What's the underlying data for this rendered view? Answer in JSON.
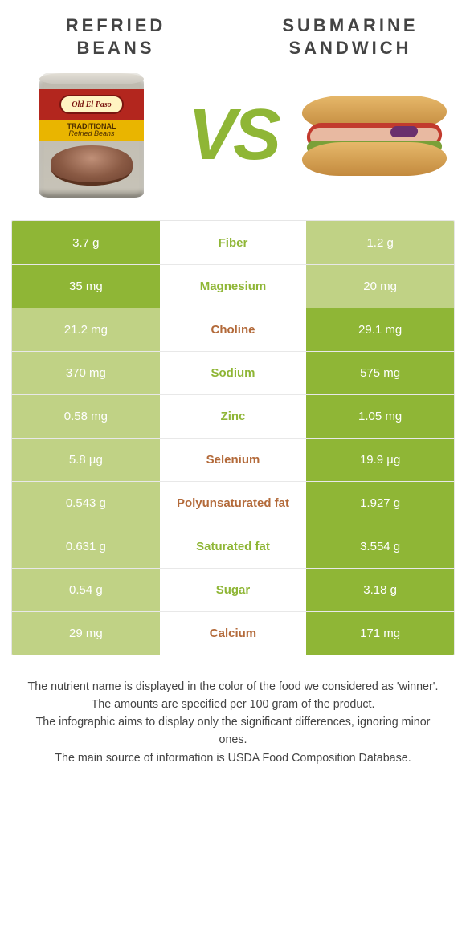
{
  "left_title": "REFRIED BEANS",
  "right_title": "SUBMARINE SANDWICH",
  "vs": "VS",
  "can_logo": "Old El Paso",
  "can_tag_line1": "TRADITIONAL",
  "can_tag_line2": "Refried Beans",
  "colors": {
    "left_full": "#8fb636",
    "half": "#c0d285",
    "mid_green": "#8fb636",
    "mid_brown": "#b36a3a"
  },
  "rows": [
    {
      "left": "3.7 g",
      "mid": "Fiber",
      "right": "1.2 g",
      "left_style": "full",
      "right_style": "half",
      "mid_color": "green"
    },
    {
      "left": "35 mg",
      "mid": "Magnesium",
      "right": "20 mg",
      "left_style": "full",
      "right_style": "half",
      "mid_color": "green"
    },
    {
      "left": "21.2 mg",
      "mid": "Choline",
      "right": "29.1 mg",
      "left_style": "half",
      "right_style": "full",
      "mid_color": "brown"
    },
    {
      "left": "370 mg",
      "mid": "Sodium",
      "right": "575 mg",
      "left_style": "half",
      "right_style": "full",
      "mid_color": "green"
    },
    {
      "left": "0.58 mg",
      "mid": "Zinc",
      "right": "1.05 mg",
      "left_style": "half",
      "right_style": "full",
      "mid_color": "green"
    },
    {
      "left": "5.8 µg",
      "mid": "Selenium",
      "right": "19.9 µg",
      "left_style": "half",
      "right_style": "full",
      "mid_color": "brown"
    },
    {
      "left": "0.543 g",
      "mid": "Polyunsaturated fat",
      "right": "1.927 g",
      "left_style": "half",
      "right_style": "full",
      "mid_color": "brown"
    },
    {
      "left": "0.631 g",
      "mid": "Saturated fat",
      "right": "3.554 g",
      "left_style": "half",
      "right_style": "full",
      "mid_color": "green"
    },
    {
      "left": "0.54 g",
      "mid": "Sugar",
      "right": "3.18 g",
      "left_style": "half",
      "right_style": "full",
      "mid_color": "green"
    },
    {
      "left": "29 mg",
      "mid": "Calcium",
      "right": "171 mg",
      "left_style": "half",
      "right_style": "full",
      "mid_color": "brown"
    }
  ],
  "notes": [
    "The nutrient name is displayed in the color of the food we considered as 'winner'.",
    "The amounts are specified per 100 gram of the product.",
    "The infographic aims to display only the significant differences, ignoring minor ones.",
    "The main source of information is USDA Food Composition Database."
  ]
}
